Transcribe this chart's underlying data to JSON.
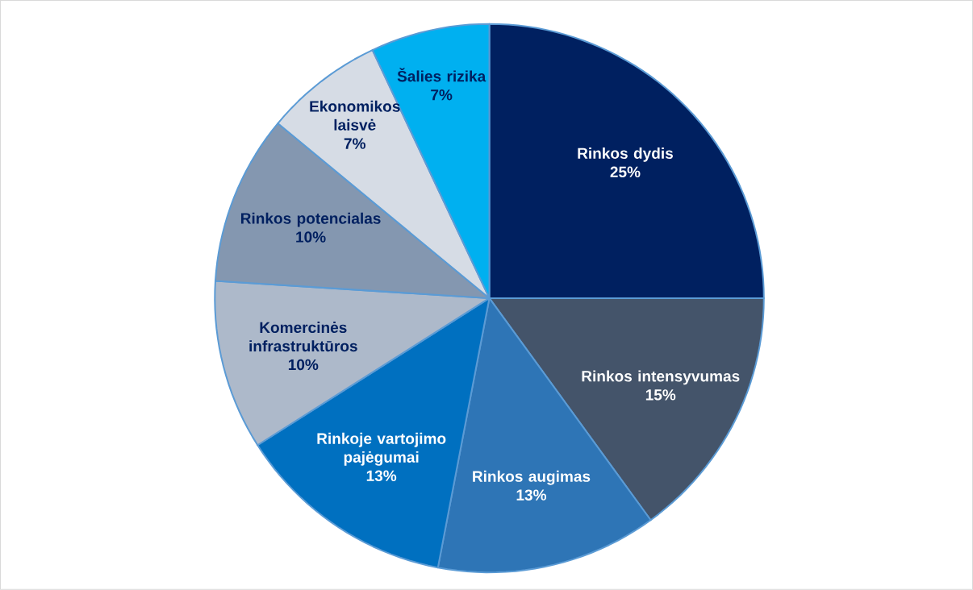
{
  "chart_data": {
    "type": "pie",
    "categories": [
      "Rinkos dydis",
      "Rinkos intensyvumas",
      "Rinkos augimas",
      "Rinkoje vartojimo pajėgumai",
      "Komercinės infrastruktūros",
      "Rinkos potencialas",
      "Ekonomikos laisvė",
      "Šalies rizika"
    ],
    "values": [
      25,
      15,
      13,
      13,
      10,
      10,
      7,
      7
    ],
    "colors": [
      "#002060",
      "#44546a",
      "#2e75b6",
      "#0070c0",
      "#adb9ca",
      "#8497b0",
      "#d6dce5",
      "#00b0f0"
    ],
    "value_labels": [
      "25%",
      "15%",
      "13%",
      "13%",
      "10%",
      "10%",
      "7%",
      "7%"
    ]
  }
}
